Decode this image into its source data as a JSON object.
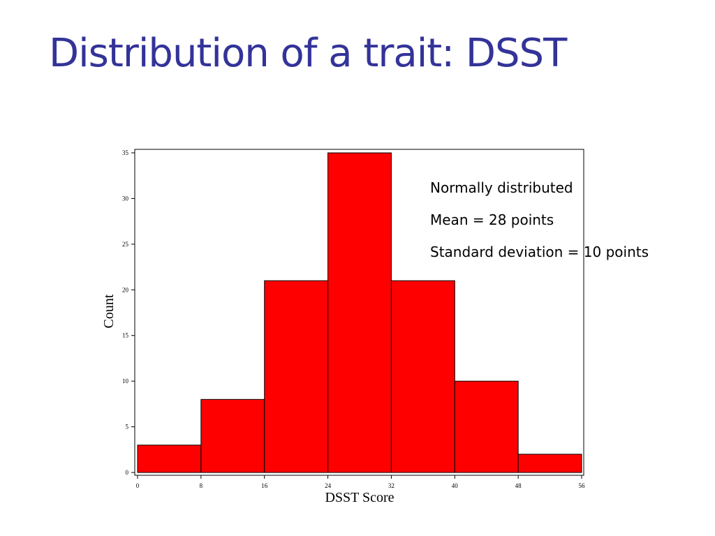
{
  "slide": {
    "title": "Distribution of a trait: DSST",
    "notes": [
      "Normally distributed",
      "Mean = 28 points",
      "Standard deviation = 10 points"
    ]
  },
  "colors": {
    "title": "#333399",
    "bar_fill": "#ff0000",
    "bar_stroke": "#000000"
  },
  "chart_data": {
    "type": "bar",
    "title": "",
    "xlabel": "DSST Score",
    "ylabel": "Count",
    "bin_edges": [
      0,
      8,
      16,
      24,
      32,
      40,
      48,
      56
    ],
    "values": [
      3,
      8,
      21,
      35,
      21,
      10,
      2
    ],
    "x_ticks": [
      0,
      8,
      16,
      24,
      32,
      40,
      48,
      56
    ],
    "y_ticks": [
      0,
      5,
      10,
      15,
      20,
      25,
      30,
      35
    ],
    "xlim": [
      0,
      56
    ],
    "ylim": [
      0,
      35
    ],
    "grid": false
  }
}
